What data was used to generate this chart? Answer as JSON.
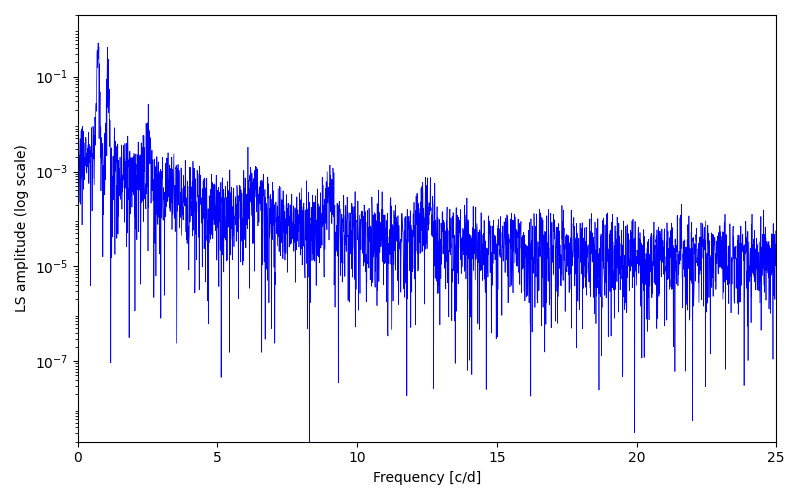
{
  "xlabel": "Frequency [c/d]",
  "ylabel": "LS amplitude (log scale)",
  "xlim": [
    0,
    25
  ],
  "ylim": [
    2e-09,
    2.0
  ],
  "yticks": [
    1e-07,
    1e-05,
    0.001,
    0.1
  ],
  "line_color": "blue",
  "line_width": 0.5,
  "yscale": "log",
  "figsize": [
    8.0,
    5.0
  ],
  "dpi": 100,
  "seed": 7,
  "n_points": 3000,
  "freq_max": 25.0
}
